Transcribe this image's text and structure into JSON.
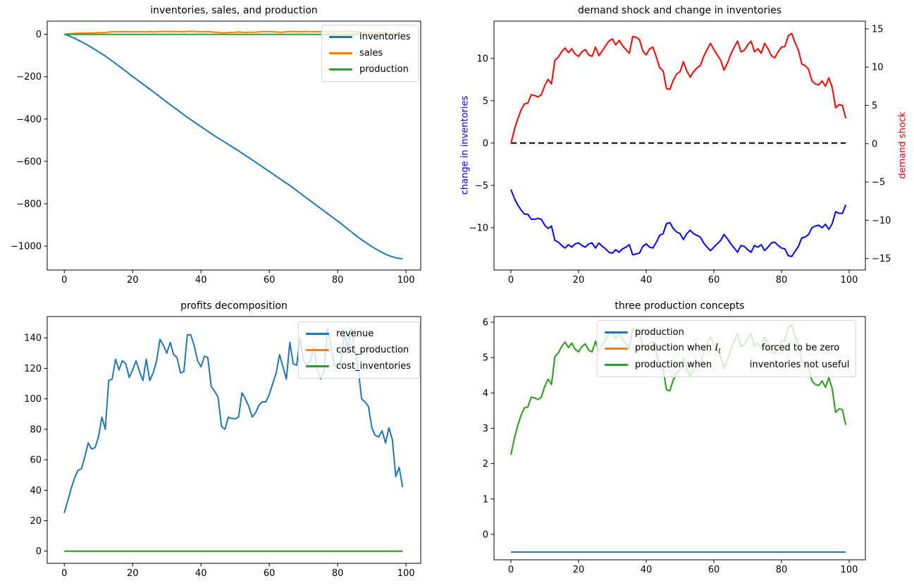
{
  "figure": {
    "background": "#ffffff"
  },
  "palette": {
    "tab_blue": "#1f77b4",
    "tab_orange": "#ff7f0e",
    "tab_green": "#2ca02c",
    "pure_blue": "#0000ff",
    "pure_red": "#ff0000",
    "black": "#000000"
  },
  "chart_data": [
    {
      "type": "line",
      "title": "inventories, sales, and production",
      "xlabel": "",
      "ylabel": "",
      "x_range": [
        0,
        99
      ],
      "xlim": [
        -5,
        104.3
      ],
      "ylim": [
        -1113,
        62
      ],
      "x_ticks": {
        "values": [
          0,
          20,
          40,
          60,
          80,
          100
        ],
        "labels": [
          "0",
          "20",
          "40",
          "60",
          "80",
          "100"
        ]
      },
      "y_ticks": {
        "values": [
          0,
          -200,
          -400,
          -600,
          -800,
          -1000
        ],
        "labels": [
          "0",
          "−200",
          "−400",
          "−600",
          "−800",
          "−1000"
        ]
      },
      "grid": false,
      "legend": {
        "position": "upper-right",
        "entries": [
          {
            "label": "inventories",
            "color": "#1f77b4"
          },
          {
            "label": "sales",
            "color": "#ff7f0e"
          },
          {
            "label": "production",
            "color": "#2ca02c"
          }
        ]
      },
      "series": [
        {
          "name": "inventories",
          "color": "#1f77b4",
          "values": [
            0,
            -5,
            -12,
            -19,
            -27,
            -35,
            -44,
            -53,
            -62,
            -72,
            -82,
            -92,
            -103,
            -114,
            -126,
            -138,
            -150,
            -162,
            -174,
            -187,
            -200,
            -211,
            -223,
            -235,
            -247,
            -259,
            -271,
            -283,
            -295,
            -308,
            -320,
            -332,
            -344,
            -356,
            -368,
            -380,
            -392,
            -403,
            -414,
            -425,
            -436,
            -447,
            -458,
            -469,
            -480,
            -490,
            -500,
            -510,
            -520,
            -530,
            -540,
            -550,
            -561,
            -572,
            -582,
            -593,
            -604,
            -615,
            -626,
            -637,
            -648,
            -659,
            -670,
            -681,
            -692,
            -703,
            -714,
            -726,
            -738,
            -750,
            -762,
            -774,
            -786,
            -798,
            -810,
            -822,
            -834,
            -846,
            -858,
            -870,
            -882,
            -894,
            -907,
            -920,
            -933,
            -946,
            -958,
            -970,
            -981,
            -992,
            -1002,
            -1012,
            -1021,
            -1030,
            -1038,
            -1045,
            -1050,
            -1055,
            -1058,
            -1060
          ]
        },
        {
          "name": "sales",
          "color": "#ff7f0e",
          "values_from": {
            "chart": 1,
            "series": "demand shock"
          }
        },
        {
          "name": "production",
          "color": "#2ca02c",
          "const": -0.5,
          "n": 100
        }
      ]
    },
    {
      "type": "line",
      "title": "demand shock and change in inventories",
      "dual_axis": true,
      "x_range": [
        0,
        99
      ],
      "xlim": [
        -5,
        104.8
      ],
      "x_ticks": {
        "values": [
          0,
          20,
          40,
          60,
          80,
          100
        ],
        "labels": [
          "0",
          "20",
          "40",
          "60",
          "80",
          "100"
        ]
      },
      "axis_left": {
        "label": "change in inventories",
        "color": "#0000ff",
        "ylim": [
          -15,
          14.4
        ],
        "ticks": {
          "values": [
            10,
            5,
            0,
            -5,
            -10
          ],
          "labels": [
            "10",
            "5",
            "0",
            "−5",
            "−10"
          ]
        }
      },
      "axis_right": {
        "label": "demand shock",
        "color": "#ff0000",
        "ylim": [
          -16.5,
          16
        ],
        "ticks": {
          "values": [
            15,
            10,
            5,
            0,
            -5,
            -10,
            -15
          ],
          "labels": [
            "15",
            "10",
            "5",
            "0",
            "−5",
            "−10",
            "−15"
          ]
        }
      },
      "grid": false,
      "series": [
        {
          "name": "zero line",
          "axis": "left",
          "color": "#000000",
          "dashed": true,
          "const": 0,
          "n": 100
        },
        {
          "name": "demand shock",
          "axis": "right",
          "color": "#ff0000",
          "values": [
            0,
            1.8,
            3.2,
            4.4,
            5.2,
            5.3,
            6.4,
            6.3,
            6.1,
            6.4,
            7.6,
            8.4,
            7.8,
            10.9,
            11.3,
            12,
            12.5,
            11.9,
            12.4,
            11.7,
            11.4,
            12,
            12.3,
            11.6,
            11.4,
            12.6,
            11.5,
            12.1,
            12.8,
            13.4,
            13.7,
            12.9,
            13.5,
            12.8,
            12.3,
            11.8,
            14,
            13.9,
            13.6,
            12.1,
            11.6,
            12.4,
            12.6,
            11.3,
            9.9,
            9.5,
            7.2,
            7.1,
            8.3,
            9.1,
            9.4,
            10.7,
            9.5,
            8.7,
            9.4,
            9.9,
            10.2,
            11.4,
            12.3,
            13.1,
            12.3,
            11.6,
            10.9,
            9.6,
            10.5,
            11.7,
            12.6,
            13.4,
            12,
            12.2,
            12.9,
            13.4,
            12,
            12.4,
            11.8,
            13.1,
            12.4,
            11.5,
            11.2,
            12,
            12.6,
            12.7,
            14.1,
            14.4,
            13.2,
            12.2,
            10.4,
            10.2,
            9.7,
            8.2,
            7.8,
            7.7,
            8.2,
            7.5,
            8.6,
            7.3,
            4.7,
            5.1,
            5,
            3.3
          ]
        },
        {
          "name": "change in inventories",
          "axis": "left",
          "color": "#0000ff",
          "values": [
            -5.5,
            -6.5,
            -7.3,
            -7.9,
            -8.4,
            -8.4,
            -9,
            -9,
            -8.9,
            -9,
            -9.7,
            -10.1,
            -9.8,
            -11.5,
            -11.7,
            -12.1,
            -12.4,
            -12,
            -12.3,
            -11.9,
            -11.8,
            -12.1,
            -12.3,
            -11.9,
            -11.8,
            -12.4,
            -11.8,
            -12.2,
            -12.5,
            -12.9,
            -13,
            -12.6,
            -12.9,
            -12.5,
            -12.3,
            -12,
            -13.2,
            -13.1,
            -13,
            -12.2,
            -11.9,
            -12.3,
            -12.4,
            -11.7,
            -10.9,
            -10.7,
            -9.5,
            -9.4,
            -10.1,
            -10.5,
            -10.7,
            -11.4,
            -10.7,
            -10.3,
            -10.7,
            -10.9,
            -11.1,
            -11.8,
            -12.3,
            -12.7,
            -12.3,
            -11.9,
            -11.5,
            -10.8,
            -11.3,
            -11.9,
            -12.4,
            -12.9,
            -12.1,
            -12.2,
            -12.6,
            -12.9,
            -12.1,
            -12.3,
            -12,
            -12.7,
            -12.3,
            -11.8,
            -11.7,
            -12.1,
            -12.4,
            -12.5,
            -13.3,
            -13.4,
            -12.8,
            -12.2,
            -11.2,
            -11.1,
            -10.8,
            -10,
            -9.8,
            -9.7,
            -10,
            -9.6,
            -10.2,
            -9.5,
            -8.1,
            -8.3,
            -8.3,
            -7.3
          ]
        }
      ]
    },
    {
      "type": "line",
      "title": "profits decomposition",
      "x_range": [
        0,
        99
      ],
      "xlim": [
        -5,
        104.3
      ],
      "ylim": [
        -8,
        154
      ],
      "x_ticks": {
        "values": [
          0,
          20,
          40,
          60,
          80,
          100
        ],
        "labels": [
          "0",
          "20",
          "40",
          "60",
          "80",
          "100"
        ]
      },
      "y_ticks": {
        "values": [
          0,
          20,
          40,
          60,
          80,
          100,
          120,
          140
        ],
        "labels": [
          "0",
          "20",
          "40",
          "60",
          "80",
          "100",
          "120",
          "140"
        ]
      },
      "grid": false,
      "legend": {
        "position": "upper-right",
        "entries": [
          {
            "label": "revenue",
            "color": "#1f77b4"
          },
          {
            "label": "cost_production",
            "color": "#ff7f0e"
          },
          {
            "label": "cost_inventories",
            "color": "#2ca02c"
          }
        ]
      },
      "series": [
        {
          "name": "revenue",
          "color": "#1f77b4",
          "values": [
            25,
            33,
            41,
            48,
            53,
            54,
            62,
            71,
            67,
            68,
            75,
            88,
            80,
            112,
            113,
            126,
            119,
            125,
            123,
            114,
            119,
            125,
            118,
            112,
            126,
            112,
            117,
            125,
            139,
            135,
            130,
            137,
            129,
            127,
            117,
            118,
            142,
            142,
            135,
            125,
            121,
            128,
            127,
            108,
            105,
            101,
            82,
            80,
            88,
            87,
            87,
            88,
            104,
            100,
            95,
            88,
            91,
            96,
            98,
            98,
            103,
            110,
            117,
            129,
            121,
            113,
            137,
            123,
            122,
            140,
            125,
            122,
            125,
            134,
            120,
            113,
            118,
            146,
            135,
            122,
            120,
            125,
            144,
            132,
            146,
            133,
            120,
            100,
            98,
            95,
            81,
            76,
            75,
            79,
            71,
            81,
            73,
            49,
            55,
            42
          ]
        },
        {
          "name": "cost_production",
          "color": "#ff7f0e",
          "const": 0,
          "n": 100
        },
        {
          "name": "cost_inventories",
          "color": "#2ca02c",
          "const": 0,
          "n": 100
        }
      ]
    },
    {
      "type": "line",
      "title": "three production concepts",
      "x_range": [
        0,
        99
      ],
      "xlim": [
        -5,
        104.8
      ],
      "ylim": [
        -0.72,
        6.16
      ],
      "x_ticks": {
        "values": [
          0,
          20,
          40,
          60,
          80,
          100
        ],
        "labels": [
          "0",
          "20",
          "40",
          "60",
          "80",
          "100"
        ]
      },
      "y_ticks": {
        "values": [
          6,
          5,
          4,
          3,
          2,
          1,
          0
        ],
        "labels": [
          "6",
          "5",
          "4",
          "3",
          "2",
          "1",
          "0"
        ]
      },
      "grid": false,
      "legend": {
        "position": "upper-center",
        "entries": [
          {
            "label": "production",
            "color": "#1f77b4"
          },
          {
            "label_segments": [
              {
                "text": "production when "
              },
              {
                "math": "I_t"
              },
              {
                "text": "              forced to be zero"
              }
            ],
            "color": "#ff7f0e"
          },
          {
            "label_segments": [
              {
                "text": "production when "
              },
              {
                "text": "            inventories not useful"
              }
            ],
            "color": "#2ca02c"
          }
        ]
      },
      "series": [
        {
          "name": "production",
          "color": "#1f77b4",
          "const": -0.5,
          "n": 100
        },
        {
          "name": "production when I_t forced to be zero",
          "color": "#ff7f0e",
          "values_from": {
            "chart": 3,
            "series": "production when inventories not useful"
          }
        },
        {
          "name": "production when inventories not useful",
          "color": "#2ca02c",
          "values": [
            2.25,
            2.71,
            3.07,
            3.37,
            3.58,
            3.6,
            3.88,
            3.86,
            3.81,
            3.88,
            4.19,
            4.39,
            4.24,
            5.03,
            5.13,
            5.31,
            5.44,
            5.28,
            5.41,
            5.23,
            5.16,
            5.31,
            5.39,
            5.21,
            5.16,
            5.46,
            5.18,
            5.34,
            5.51,
            5.67,
            5.74,
            5.54,
            5.69,
            5.51,
            5.39,
            5.26,
            5.82,
            5.79,
            5.72,
            5.34,
            5.21,
            5.41,
            5.46,
            5.13,
            4.77,
            4.67,
            4.09,
            4.06,
            4.37,
            4.57,
            4.65,
            4.98,
            4.67,
            4.47,
            4.65,
            4.77,
            4.85,
            5.16,
            5.39,
            5.59,
            5.39,
            5.21,
            5.03,
            4.7,
            4.93,
            5.23,
            5.46,
            5.67,
            5.31,
            5.36,
            5.54,
            5.67,
            5.31,
            5.41,
            5.26,
            5.59,
            5.41,
            5.18,
            5.11,
            5.31,
            5.46,
            5.49,
            5.85,
            5.92,
            5.62,
            5.36,
            4.9,
            4.85,
            4.72,
            4.34,
            4.24,
            4.21,
            4.34,
            4.16,
            4.44,
            4.11,
            3.45,
            3.55,
            3.53,
            3.09
          ]
        }
      ]
    }
  ]
}
